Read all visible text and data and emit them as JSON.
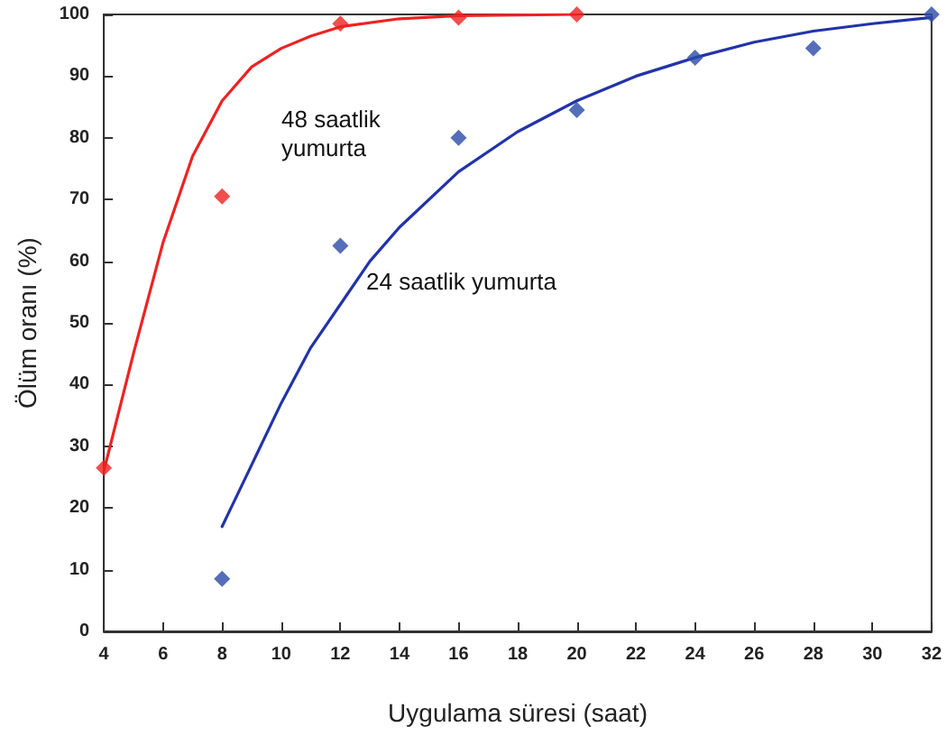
{
  "chart_data": {
    "type": "scatter",
    "xlabel": "Uygulama süresi (saat)",
    "ylabel": "Ölüm oranı (%)",
    "xlim": [
      4,
      32
    ],
    "xticks": [
      4,
      6,
      8,
      10,
      12,
      14,
      16,
      18,
      20,
      22,
      24,
      26,
      28,
      30,
      32
    ],
    "ylim": [
      0,
      100
    ],
    "yticks": [
      0,
      10,
      20,
      30,
      40,
      50,
      60,
      70,
      80,
      90,
      100
    ],
    "grid": false,
    "series": [
      {
        "type": "line",
        "marker": "none",
        "color": "#ee2222",
        "x": [
          4,
          5,
          6,
          7,
          8,
          9,
          10,
          11,
          12,
          14,
          16,
          20
        ],
        "values": [
          26,
          45,
          63,
          77,
          86,
          91.5,
          94.5,
          96.5,
          98,
          99.3,
          99.8,
          100
        ]
      },
      {
        "type": "line",
        "marker": "none",
        "color": "#2233aa",
        "x": [
          8,
          9,
          10,
          11,
          12,
          13,
          14,
          16,
          18,
          20,
          22,
          24,
          26,
          28,
          30,
          32
        ],
        "values": [
          17,
          27,
          37,
          46,
          53,
          60,
          65.5,
          74.5,
          81,
          86,
          90,
          93,
          95.5,
          97.3,
          98.5,
          99.5
        ]
      },
      {
        "marker": "diamond",
        "color": "#ee2222",
        "x": [
          4,
          8,
          12,
          16,
          20
        ],
        "values": [
          26.5,
          70.5,
          98.5,
          99.5,
          100
        ]
      },
      {
        "marker": "diamond",
        "color": "#2a4aa8",
        "x": [
          8,
          12,
          16,
          20,
          24,
          28,
          32
        ],
        "values": [
          8.5,
          62.5,
          80,
          84.5,
          93,
          94.5,
          100
        ]
      }
    ],
    "annotations": [
      "48 saatlik yumurta",
      "24 saatlik yumurta"
    ]
  }
}
